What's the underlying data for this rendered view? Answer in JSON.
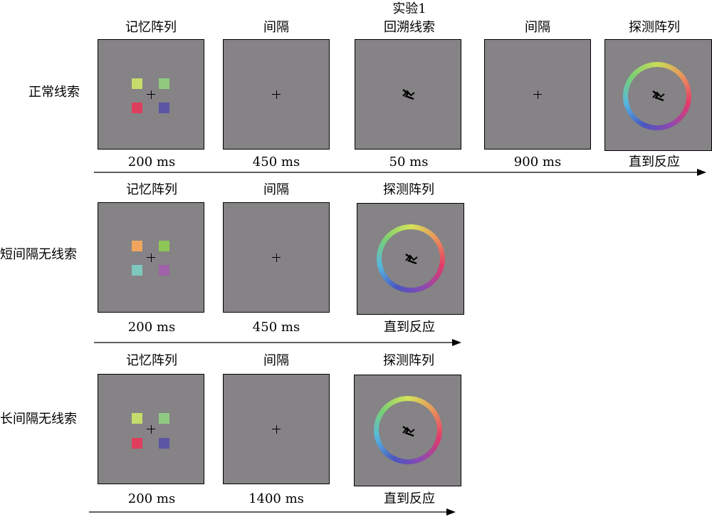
{
  "experiment_title": "实验1",
  "rows": [
    {
      "label": "正常线索",
      "stages": [
        {
          "name": "记忆阵列",
          "duration": "200 ms",
          "kind": "memory",
          "colors": [
            "#c5dc6a",
            "#8fca7e",
            "#de3e5e",
            "#5c55a6"
          ]
        },
        {
          "name": "间隔",
          "duration": "450 ms",
          "kind": "fixation"
        },
        {
          "name": "回溯线索",
          "duration": "50 ms",
          "kind": "cue"
        },
        {
          "name": "间隔",
          "duration": "900 ms",
          "kind": "fixation"
        },
        {
          "name": "探测阵列",
          "duration": "直到反应",
          "kind": "probe"
        }
      ]
    },
    {
      "label": "短间隔无线索",
      "stages": [
        {
          "name": "记忆阵列",
          "duration": "200 ms",
          "kind": "memory",
          "colors": [
            "#f0a55e",
            "#8ec557",
            "#7dc7bd",
            "#a062a8"
          ]
        },
        {
          "name": "间隔",
          "duration": "450 ms",
          "kind": "fixation"
        },
        {
          "name": "探测阵列",
          "duration": "直到反应",
          "kind": "probe"
        }
      ]
    },
    {
      "label": "长间隔无线索",
      "stages": [
        {
          "name": "记忆阵列",
          "duration": "200 ms",
          "kind": "memory",
          "colors": [
            "#c4dc6b",
            "#8fca82",
            "#df3e5d",
            "#5c55a6"
          ]
        },
        {
          "name": "间隔",
          "duration": "1400 ms",
          "kind": "fixation"
        },
        {
          "name": "探测阵列",
          "duration": "直到反应",
          "kind": "probe"
        }
      ]
    }
  ],
  "colors": {
    "panel_bg": "#858385",
    "color_wheel": [
      "#d4e35a",
      "#e9935a",
      "#e33a6a",
      "#8e48b0",
      "#4a55c0",
      "#55b8e0",
      "#7cd070",
      "#c8dc5a"
    ]
  },
  "icons": {
    "fixation": "fixation-cross-icon",
    "cue": "retro-cue-icon",
    "arrow": "timeline-arrow-icon"
  }
}
